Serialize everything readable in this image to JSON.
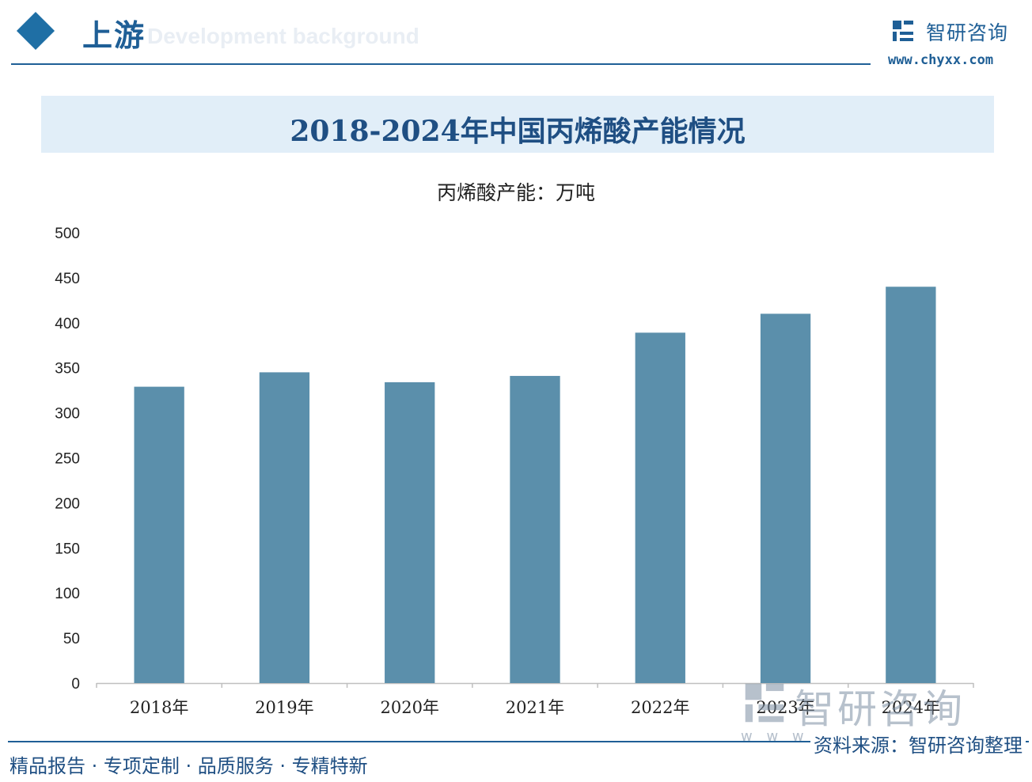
{
  "header": {
    "section_title": "上游",
    "section_subtitle": "Development background",
    "brand_name": "智研咨询",
    "brand_url": "www.chyxx.com",
    "brand_icon": "chyxx-logo-icon",
    "decor_icon": "diamond-icon"
  },
  "banner": {
    "title": "2018-2024年中国丙烯酸产能情况"
  },
  "chart_data": {
    "type": "bar",
    "title": "2018-2024年中国丙烯酸产能情况",
    "series_label": "丙烯酸产能：万吨",
    "categories": [
      "2018年",
      "2019年",
      "2020年",
      "2021年",
      "2022年",
      "2023年",
      "2024年"
    ],
    "series": [
      {
        "name": "丙烯酸产能：万吨",
        "values": [
          329,
          345,
          334,
          341,
          389,
          410,
          440
        ]
      }
    ],
    "ylim": [
      0,
      500
    ],
    "yticks": [
      0,
      50,
      100,
      150,
      200,
      250,
      300,
      350,
      400,
      450,
      500
    ],
    "grid": false,
    "legend": "top-center",
    "bar_color": "#5b8fab"
  },
  "footer": {
    "tags": "精品报告 · 专项定制 · 品质服务 · 专精特新",
    "source": "资料来源：智研咨询整理",
    "watermark_text": "智研咨询",
    "watermark_fade": "w w w"
  },
  "colors": {
    "brand": "#1f5f96",
    "banner_bg": "#e1eef8",
    "bar": "#5b8fab"
  }
}
